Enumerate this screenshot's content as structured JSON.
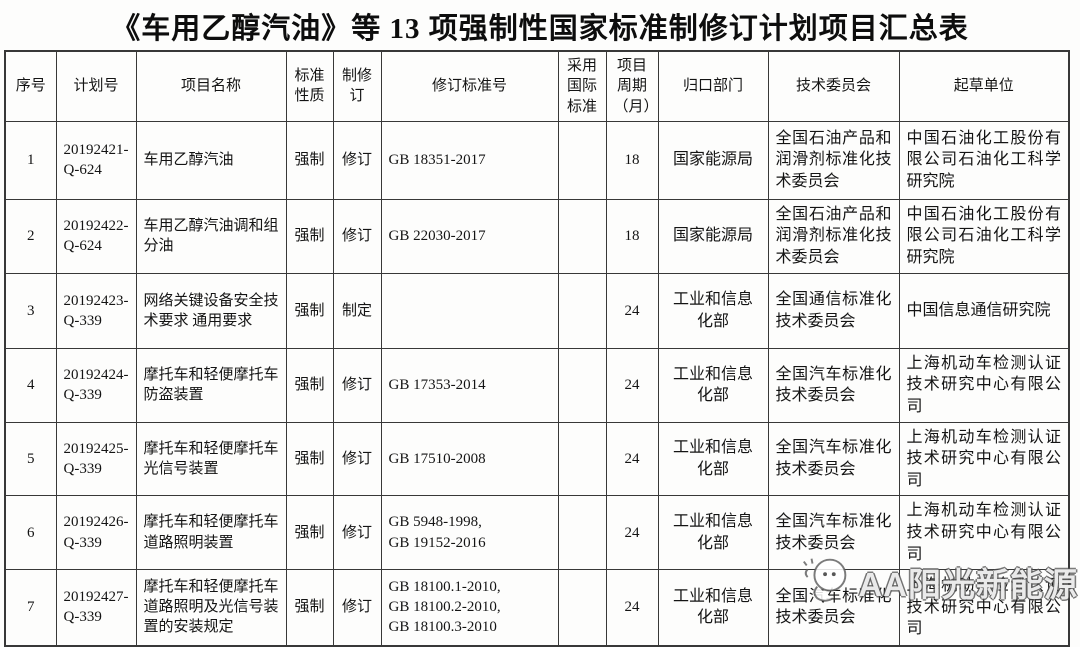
{
  "page": {
    "title": "《车用乙醇汽油》等 13 项强制性国家标准制修订计划项目汇总表"
  },
  "colors": {
    "paper": "#fdfdfc",
    "ink": "#141414",
    "grid_line": "#383838",
    "watermark_fill": "#ffffff",
    "watermark_outline": "#505050"
  },
  "table": {
    "columns": [
      {
        "key": "no",
        "label": "序号"
      },
      {
        "key": "plan_no",
        "label": "计划号"
      },
      {
        "key": "name",
        "label": "项目名称"
      },
      {
        "key": "nature",
        "label": "标准\n性质"
      },
      {
        "key": "type",
        "label": "制修\n订"
      },
      {
        "key": "std_no",
        "label": "修订标准号"
      },
      {
        "key": "intl",
        "label": "采用\n国际\n标准"
      },
      {
        "key": "period",
        "label": "项目\n周期\n（月）"
      },
      {
        "key": "dept",
        "label": "归口部门"
      },
      {
        "key": "committee",
        "label": "技术委员会"
      },
      {
        "key": "drafter",
        "label": "起草单位"
      }
    ],
    "rows": [
      {
        "no": "1",
        "plan_no": "20192421-\nQ-624",
        "name": "车用乙醇汽油",
        "nature": "强制",
        "type": "修订",
        "std_no": "GB 18351-2017",
        "intl": "",
        "period": "18",
        "dept": "国家能源局",
        "committee": "全国石油产品和润滑剂标准化技术委员会",
        "drafter": "中国石油化工股份有限公司石油化工科学研究院"
      },
      {
        "no": "2",
        "plan_no": "20192422-\nQ-624",
        "name": "车用乙醇汽油调和组分油",
        "nature": "强制",
        "type": "修订",
        "std_no": "GB 22030-2017",
        "intl": "",
        "period": "18",
        "dept": "国家能源局",
        "committee": "全国石油产品和润滑剂标准化技术委员会",
        "drafter": "中国石油化工股份有限公司石油化工科学研究院"
      },
      {
        "no": "3",
        "plan_no": "20192423-\nQ-339",
        "name": "网络关键设备安全技术要求 通用要求",
        "nature": "强制",
        "type": "制定",
        "std_no": "",
        "intl": "",
        "period": "24",
        "dept": "工业和信息化部",
        "committee": "全国通信标准化技术委员会",
        "drafter": "中国信息通信研究院"
      },
      {
        "no": "4",
        "plan_no": "20192424-\nQ-339",
        "name": "摩托车和轻便摩托车防盗装置",
        "nature": "强制",
        "type": "修订",
        "std_no": "GB 17353-2014",
        "intl": "",
        "period": "24",
        "dept": "工业和信息化部",
        "committee": "全国汽车标准化技术委员会",
        "drafter": "上海机动车检测认证技术研究中心有限公司"
      },
      {
        "no": "5",
        "plan_no": "20192425-\nQ-339",
        "name": "摩托车和轻便摩托车光信号装置",
        "nature": "强制",
        "type": "修订",
        "std_no": "GB 17510-2008",
        "intl": "",
        "period": "24",
        "dept": "工业和信息化部",
        "committee": "全国汽车标准化技术委员会",
        "drafter": "上海机动车检测认证技术研究中心有限公司"
      },
      {
        "no": "6",
        "plan_no": "20192426-\nQ-339",
        "name": "摩托车和轻便摩托车道路照明装置",
        "nature": "强制",
        "type": "修订",
        "std_no": "GB 5948-1998,\nGB 19152-2016",
        "intl": "",
        "period": "24",
        "dept": "工业和信息化部",
        "committee": "全国汽车标准化技术委员会",
        "drafter": "上海机动车检测认证技术研究中心有限公司"
      },
      {
        "no": "7",
        "plan_no": "20192427-\nQ-339",
        "name": "摩托车和轻便摩托车道路照明及光信号装置的安装规定",
        "nature": "强制",
        "type": "修订",
        "std_no": "GB 18100.1-2010,\nGB 18100.2-2010,\nGB 18100.3-2010",
        "intl": "",
        "period": "24",
        "dept": "工业和信息化部",
        "committee": "全国汽车标准化技术委员会",
        "drafter": "上海机动车检测认证技术研究中心有限公司"
      }
    ]
  },
  "watermark": {
    "text": "AA阳光新能源",
    "logo": "cartoon-sun-face-logo"
  }
}
